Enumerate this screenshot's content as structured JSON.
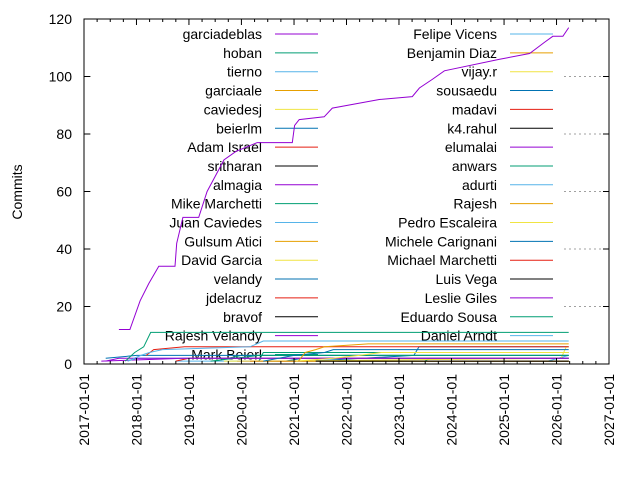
{
  "chart_data": {
    "type": "line",
    "title": "",
    "xlabel": "",
    "ylabel": "Commits",
    "xlim": [
      "2017-01-01",
      "2027-01-01"
    ],
    "ylim": [
      0,
      120
    ],
    "xticks": [
      "2017-01-01",
      "2018-01-01",
      "2019-01-01",
      "2020-01-01",
      "2021-01-01",
      "2022-01-01",
      "2023-01-01",
      "2024-01-01",
      "2025-01-01",
      "2026-01-01",
      "2027-01-01"
    ],
    "yticks": [
      0,
      20,
      40,
      60,
      80,
      100,
      120
    ],
    "grid": "y-dotted",
    "legend": "inside, two columns, top",
    "palette": [
      "#9400d3",
      "#009e73",
      "#56b4e9",
      "#e69f00",
      "#f0e442",
      "#0072b2",
      "#e51e10",
      "#000000"
    ],
    "series": [
      {
        "name": "garciadeblas",
        "points": [
          [
            "2017-09-01",
            12
          ],
          [
            "2017-11-16",
            12
          ],
          [
            "2018-01-26",
            22
          ],
          [
            "2018-03-28",
            28
          ],
          [
            "2018-06-05",
            34
          ],
          [
            "2018-09-26",
            34
          ],
          [
            "2018-10-08",
            42
          ],
          [
            "2018-11-20",
            51
          ],
          [
            "2019-03-10",
            51
          ],
          [
            "2019-05-07",
            60
          ],
          [
            "2019-09-02",
            71
          ],
          [
            "2019-11-25",
            74
          ],
          [
            "2020-04-20",
            77
          ],
          [
            "2020-12-20",
            77
          ],
          [
            "2021-01-05",
            83
          ],
          [
            "2021-02-06",
            85
          ],
          [
            "2021-07-30",
            86
          ],
          [
            "2021-09-24",
            89
          ],
          [
            "2022-08-17",
            92
          ],
          [
            "2023-04-04",
            93
          ],
          [
            "2023-05-23",
            96
          ],
          [
            "2023-08-21",
            99
          ],
          [
            "2023-11-13",
            102
          ],
          [
            "2024-12-01",
            106
          ],
          [
            "2025-06-28",
            108
          ],
          [
            "2025-10-12",
            112
          ],
          [
            "2025-12-06",
            114
          ],
          [
            "2026-02-14",
            114
          ],
          [
            "2026-03-27",
            117
          ]
        ]
      },
      {
        "name": "hoban",
        "points": [
          [
            "2017-10-15",
            1
          ],
          [
            "2017-12-20",
            4
          ],
          [
            "2018-02-20",
            6
          ],
          [
            "2018-04-10",
            11
          ],
          [
            "2026-03-27",
            11
          ]
        ]
      },
      {
        "name": "tierno",
        "points": [
          [
            "2017-11-01",
            1
          ],
          [
            "2018-02-01",
            3
          ],
          [
            "2018-04-01",
            4
          ],
          [
            "2018-07-01",
            5
          ],
          [
            "2020-03-01",
            6
          ],
          [
            "2020-06-01",
            8
          ],
          [
            "2026-03-27",
            8
          ]
        ]
      },
      {
        "name": "garciaale",
        "points": [
          [
            "2021-02-01",
            1
          ],
          [
            "2021-03-20",
            4
          ],
          [
            "2021-06-01",
            5
          ],
          [
            "2021-08-01",
            6
          ],
          [
            "2022-06-01",
            7
          ],
          [
            "2026-03-27",
            7
          ]
        ]
      },
      {
        "name": "caviedesj",
        "points": [
          [
            "2021-01-15",
            1
          ],
          [
            "2021-10-01",
            2
          ],
          [
            "2022-04-01",
            3
          ],
          [
            "2022-09-01",
            4
          ],
          [
            "2026-03-27",
            4
          ]
        ]
      },
      {
        "name": "beierlm",
        "points": [
          [
            "2020-06-01",
            1
          ],
          [
            "2021-01-01",
            3
          ],
          [
            "2021-08-01",
            4
          ],
          [
            "2021-10-01",
            5
          ],
          [
            "2026-03-27",
            5
          ]
        ]
      },
      {
        "name": "Adam Israel",
        "points": [
          [
            "2018-03-10",
            3
          ],
          [
            "2018-05-01",
            5
          ],
          [
            "2018-12-01",
            6
          ],
          [
            "2026-03-27",
            6
          ]
        ]
      },
      {
        "name": "sritharan",
        "points": [
          [
            "2021-06-01",
            1
          ],
          [
            "2026-03-27",
            1
          ]
        ]
      },
      {
        "name": "almagia",
        "points": [
          [
            "2017-06-01",
            1
          ],
          [
            "2017-09-01",
            2
          ],
          [
            "2026-03-27",
            2
          ]
        ]
      },
      {
        "name": "Mike Marchetti",
        "points": [
          [
            "2019-06-01",
            1
          ],
          [
            "2020-05-01",
            3
          ],
          [
            "2026-03-27",
            3
          ]
        ]
      },
      {
        "name": "Juan Caviedes",
        "points": [
          [
            "2017-11-01",
            1
          ],
          [
            "2018-01-01",
            2
          ],
          [
            "2026-03-27",
            2
          ]
        ]
      },
      {
        "name": "Gulsum Atici",
        "points": [
          [
            "2020-03-01",
            1
          ],
          [
            "2026-03-27",
            1
          ]
        ]
      },
      {
        "name": "David Garcia",
        "points": [
          [
            "2019-09-01",
            1
          ],
          [
            "2026-03-27",
            1
          ]
        ]
      },
      {
        "name": "velandy",
        "points": [
          [
            "2017-06-01",
            2
          ],
          [
            "2018-01-01",
            3
          ],
          [
            "2026-03-27",
            3
          ]
        ]
      },
      {
        "name": "jdelacruz",
        "points": [
          [
            "2018-10-01",
            1
          ],
          [
            "2019-01-01",
            2
          ],
          [
            "2026-03-27",
            2
          ]
        ]
      },
      {
        "name": "bravof",
        "points": [
          [
            "2021-11-01",
            1
          ],
          [
            "2026-03-27",
            1
          ]
        ]
      },
      {
        "name": "Rajesh Velandy",
        "points": [
          [
            "2017-05-01",
            1
          ],
          [
            "2018-12-01",
            2
          ],
          [
            "2026-03-27",
            2
          ]
        ]
      },
      {
        "name": "Mark Beierl",
        "points": [
          [
            "2019-07-01",
            1
          ],
          [
            "2020-01-01",
            3
          ],
          [
            "2026-03-27",
            3
          ]
        ]
      },
      {
        "name": "Felipe Vicens",
        "points": [
          [
            "2018-10-01",
            1
          ],
          [
            "2026-03-27",
            1
          ]
        ]
      },
      {
        "name": "Benjamin Diaz",
        "points": [
          [
            "2022-09-01",
            1
          ],
          [
            "2026-03-27",
            1
          ]
        ]
      },
      {
        "name": "vijay.r",
        "points": [
          [
            "2020-08-01",
            1
          ],
          [
            "2026-02-01",
            2
          ],
          [
            "2026-03-10",
            6
          ],
          [
            "2026-03-27",
            6
          ]
        ]
      },
      {
        "name": "sousaedu",
        "points": [
          [
            "2021-05-01",
            1
          ],
          [
            "2023-04-15",
            3
          ],
          [
            "2023-05-20",
            6
          ],
          [
            "2026-03-27",
            6
          ]
        ]
      },
      {
        "name": "madavi",
        "points": [
          [
            "2019-12-01",
            1
          ],
          [
            "2026-03-27",
            1
          ]
        ]
      },
      {
        "name": "k4.rahul",
        "points": [
          [
            "2022-01-01",
            1
          ],
          [
            "2026-03-27",
            1
          ]
        ]
      },
      {
        "name": "elumalai",
        "points": [
          [
            "2023-07-01",
            1
          ],
          [
            "2026-03-27",
            1
          ]
        ]
      },
      {
        "name": "anwars",
        "points": [
          [
            "2023-07-01",
            1
          ],
          [
            "2023-08-01",
            2
          ],
          [
            "2026-03-27",
            2
          ]
        ]
      },
      {
        "name": "adurti",
        "points": [
          [
            "2026-02-20",
            1
          ],
          [
            "2026-03-27",
            1
          ]
        ]
      },
      {
        "name": "Rajesh",
        "points": [
          [
            "2021-10-01",
            1
          ],
          [
            "2026-03-27",
            1
          ]
        ]
      },
      {
        "name": "Pedro Escaleira",
        "points": [
          [
            "2021-04-01",
            1
          ],
          [
            "2026-03-27",
            1
          ]
        ]
      },
      {
        "name": "Michele Carignani",
        "points": [
          [
            "2020-11-01",
            1
          ],
          [
            "2021-03-01",
            2
          ],
          [
            "2026-03-27",
            2
          ]
        ]
      },
      {
        "name": "Michael Marchetti",
        "points": [
          [
            "2020-09-01",
            1
          ],
          [
            "2026-03-27",
            1
          ]
        ]
      },
      {
        "name": "Luis Vega",
        "points": [
          [
            "2021-12-01",
            1
          ],
          [
            "2026-03-27",
            1
          ]
        ]
      },
      {
        "name": "Leslie Giles",
        "points": [
          [
            "2019-12-01",
            1
          ],
          [
            "2026-03-27",
            1
          ]
        ]
      },
      {
        "name": "Eduardo Sousa",
        "points": [
          [
            "2020-05-01",
            1
          ],
          [
            "2020-06-01",
            4
          ],
          [
            "2026-03-27",
            4
          ]
        ]
      },
      {
        "name": "Daniel Arndt",
        "points": [
          [
            "2025-11-01",
            1
          ],
          [
            "2026-03-27",
            3
          ]
        ]
      }
    ]
  }
}
